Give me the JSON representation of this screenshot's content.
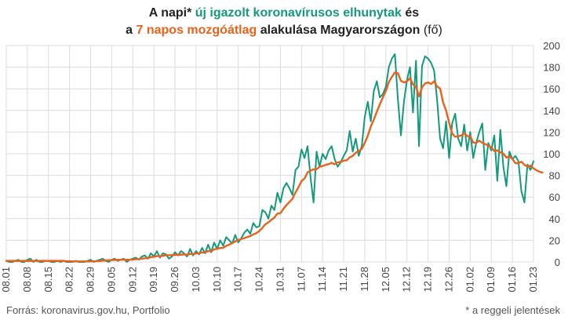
{
  "title": {
    "l1_a": "A napi* ",
    "l1_b": "új igazolt koronavírusos elhunytak",
    "l1_c": " és",
    "l2_a": "a ",
    "l2_b": "7 napos mozgóátlag",
    "l2_c": " alakulása Magyarországon ",
    "l2_d": "(fő)"
  },
  "footer": {
    "source": "Forrás: koronavirus.gov.hu, Portfolio",
    "note": "* a reggeli jelentések"
  },
  "colors": {
    "daily": "#139a7c",
    "average": "#e9611a",
    "grid": "#dcdcdc"
  },
  "chart_data": {
    "type": "line",
    "x_start": "08.01",
    "x_tick_labels": [
      "08.01",
      "08.08",
      "08.15",
      "08.22",
      "08.29",
      "09.05",
      "09.12",
      "09.19",
      "09.26",
      "10.03",
      "10.10",
      "10.17",
      "10.24",
      "10.31",
      "11.07",
      "11.14",
      "11.21",
      "11.28",
      "12.05",
      "12.12",
      "12.19",
      "12.26",
      "01.02",
      "01.09",
      "01.16",
      "01.23"
    ],
    "y_ticks": [
      0,
      20,
      40,
      60,
      80,
      100,
      120,
      140,
      160,
      180,
      200
    ],
    "ylim": [
      0,
      200
    ],
    "y_axis_side": "right",
    "grid": true,
    "series": [
      {
        "name": "új igazolt koronavírusos elhunytak",
        "values": [
          1,
          0,
          0,
          1,
          2,
          0,
          0,
          2,
          3,
          0,
          2,
          0,
          0,
          1,
          1,
          0,
          0,
          1,
          0,
          1,
          0,
          0,
          0,
          1,
          0,
          0,
          0,
          1,
          2,
          0,
          1,
          2,
          3,
          1,
          0,
          2,
          3,
          1,
          2,
          3,
          0,
          2,
          3,
          4,
          2,
          5,
          6,
          3,
          8,
          5,
          10,
          4,
          8,
          7,
          3,
          5,
          9,
          6,
          10,
          8,
          5,
          12,
          6,
          10,
          7,
          13,
          8,
          16,
          9,
          18,
          12,
          20,
          15,
          23,
          20,
          17,
          25,
          18,
          22,
          27,
          30,
          26,
          36,
          32,
          33,
          48,
          46,
          40,
          52,
          48,
          64,
          55,
          68,
          73,
          68,
          62,
          85,
          88,
          104,
          96,
          107,
          78,
          55,
          102,
          88,
          100,
          95,
          103,
          107,
          95,
          88,
          92,
          98,
          103,
          121,
          102,
          114,
          98,
          107,
          134,
          148,
          130,
          158,
          167,
          152,
          155,
          162,
          180,
          188,
          192,
          150,
          117,
          148,
          168,
          180,
          138,
          186,
          107,
          181,
          190,
          188,
          184,
          177,
          150,
          114,
          105,
          130,
          96,
          128,
          137,
          114,
          107,
          127,
          103,
          120,
          96,
          110,
          120,
          128,
          85,
          110,
          103,
          117,
          75,
          122,
          88,
          70,
          102,
          95,
          98,
          93,
          65,
          55,
          90,
          85,
          93
        ]
      },
      {
        "name": "7 napos mozgóátlag",
        "values": [
          1,
          1,
          1,
          1,
          1,
          1,
          1,
          1,
          1,
          1,
          1,
          1,
          1,
          1,
          1,
          1,
          1,
          1,
          1,
          1,
          0.7,
          0.7,
          0.5,
          0.5,
          0.5,
          0.5,
          0.5,
          0.5,
          0.5,
          0.6,
          0.7,
          0.9,
          1.2,
          1.5,
          1.7,
          1.8,
          1.9,
          1.9,
          2,
          2.1,
          2,
          2,
          2.2,
          2.6,
          2.7,
          3,
          3.4,
          3.5,
          4.6,
          4.7,
          5.5,
          5.3,
          5.7,
          6.2,
          6.3,
          6.3,
          6.6,
          6.7,
          6.7,
          6.9,
          6.7,
          7.4,
          7.4,
          7.9,
          8,
          8.8,
          8.8,
          10.1,
          9.8,
          11.7,
          12.1,
          12.9,
          13.1,
          14.9,
          16,
          17.4,
          19,
          20.3,
          21.3,
          22,
          23,
          23.9,
          25.5,
          26.6,
          28.6,
          31.6,
          34.8,
          36.6,
          38.9,
          41.1,
          44.7,
          45,
          49.2,
          52.6,
          55.5,
          58.3,
          64.2,
          69,
          74.7,
          77.1,
          82.7,
          84.4,
          85.6,
          85.6,
          88,
          88.7,
          89.7,
          90.3,
          91.6,
          90.2,
          92,
          92.5,
          93.6,
          93.9,
          96.6,
          98,
          100.9,
          102.5,
          104.5,
          110.1,
          116.6,
          125.2,
          131.5,
          138.8,
          145.7,
          152,
          158.1,
          166.3,
          171,
          175.1,
          174.4,
          167.3,
          165.9,
          166.8,
          169.9,
          164.1,
          161.8,
          152.9,
          161.4,
          164.9,
          165.9,
          164.4,
          166.9,
          162.1,
          160.3,
          147.3,
          139.7,
          128.7,
          118.7,
          115.6,
          116,
          116.9,
          118.9,
          116.3,
          116.1,
          110.3,
          110,
          112.1,
          110.1,
          108.9,
          107.4,
          105.9,
          102.4,
          103.1,
          101.3,
          100.1,
          96.4,
          97.7,
          95.2,
          91.3,
          91.3,
          92.6,
          89.7,
          88.1,
          89,
          86.4,
          84.7,
          83.3,
          82.6
        ]
      }
    ]
  }
}
